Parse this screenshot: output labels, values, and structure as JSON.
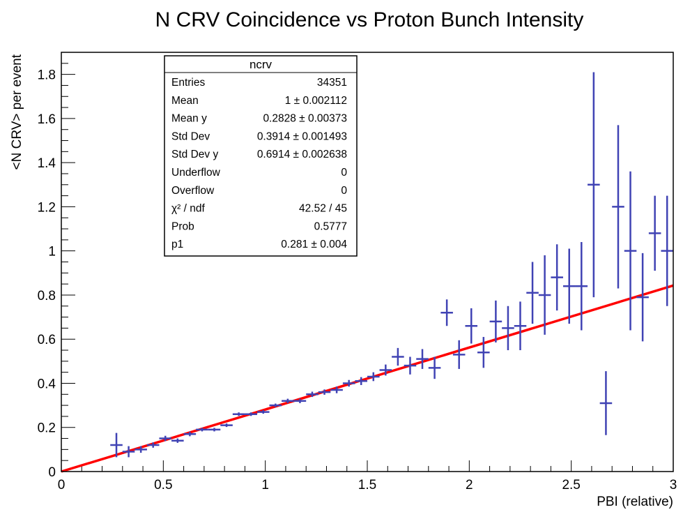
{
  "chart_data": {
    "type": "scatter",
    "title": "N CRV Coincidence vs Proton Bunch Intensity",
    "xlabel": "PBI (relative)",
    "ylabel": "<N CRV> per event",
    "xlim": [
      0,
      3
    ],
    "ylim": [
      0,
      1.9
    ],
    "x_ticks": [
      {
        "value": 0,
        "label": "0"
      },
      {
        "value": 0.5,
        "label": "0.5"
      },
      {
        "value": 1,
        "label": "1"
      },
      {
        "value": 1.5,
        "label": "1.5"
      },
      {
        "value": 2,
        "label": "2"
      },
      {
        "value": 2.5,
        "label": "2.5"
      },
      {
        "value": 3,
        "label": "3"
      }
    ],
    "y_ticks": [
      {
        "value": 0,
        "label": "0"
      },
      {
        "value": 0.2,
        "label": "0.2"
      },
      {
        "value": 0.4,
        "label": "0.4"
      },
      {
        "value": 0.6,
        "label": "0.6"
      },
      {
        "value": 0.8,
        "label": "0.8"
      },
      {
        "value": 1,
        "label": "1"
      },
      {
        "value": 1.2,
        "label": "1.2"
      },
      {
        "value": 1.4,
        "label": "1.4"
      },
      {
        "value": 1.6,
        "label": "1.6"
      },
      {
        "value": 1.8,
        "label": "1.8"
      }
    ],
    "bin_half_width": 0.03,
    "points": [
      {
        "x": 0.27,
        "y": 0.12,
        "err": 0.055
      },
      {
        "x": 0.33,
        "y": 0.09,
        "err": 0.025
      },
      {
        "x": 0.39,
        "y": 0.1,
        "err": 0.015
      },
      {
        "x": 0.45,
        "y": 0.12,
        "err": 0.012
      },
      {
        "x": 0.51,
        "y": 0.15,
        "err": 0.012
      },
      {
        "x": 0.57,
        "y": 0.14,
        "err": 0.01
      },
      {
        "x": 0.63,
        "y": 0.17,
        "err": 0.01
      },
      {
        "x": 0.69,
        "y": 0.19,
        "err": 0.008
      },
      {
        "x": 0.75,
        "y": 0.19,
        "err": 0.008
      },
      {
        "x": 0.81,
        "y": 0.21,
        "err": 0.008
      },
      {
        "x": 0.87,
        "y": 0.26,
        "err": 0.008
      },
      {
        "x": 0.93,
        "y": 0.26,
        "err": 0.008
      },
      {
        "x": 0.99,
        "y": 0.27,
        "err": 0.008
      },
      {
        "x": 1.05,
        "y": 0.3,
        "err": 0.008
      },
      {
        "x": 1.11,
        "y": 0.32,
        "err": 0.01
      },
      {
        "x": 1.17,
        "y": 0.32,
        "err": 0.01
      },
      {
        "x": 1.23,
        "y": 0.35,
        "err": 0.012
      },
      {
        "x": 1.29,
        "y": 0.36,
        "err": 0.012
      },
      {
        "x": 1.35,
        "y": 0.37,
        "err": 0.015
      },
      {
        "x": 1.41,
        "y": 0.4,
        "err": 0.015
      },
      {
        "x": 1.47,
        "y": 0.41,
        "err": 0.018
      },
      {
        "x": 1.53,
        "y": 0.43,
        "err": 0.02
      },
      {
        "x": 1.59,
        "y": 0.46,
        "err": 0.025
      },
      {
        "x": 1.65,
        "y": 0.52,
        "err": 0.04
      },
      {
        "x": 1.71,
        "y": 0.48,
        "err": 0.04
      },
      {
        "x": 1.77,
        "y": 0.51,
        "err": 0.045
      },
      {
        "x": 1.83,
        "y": 0.47,
        "err": 0.05
      },
      {
        "x": 1.89,
        "y": 0.72,
        "err": 0.06
      },
      {
        "x": 1.95,
        "y": 0.53,
        "err": 0.065
      },
      {
        "x": 2.01,
        "y": 0.66,
        "err": 0.08
      },
      {
        "x": 2.07,
        "y": 0.54,
        "err": 0.07
      },
      {
        "x": 2.13,
        "y": 0.68,
        "err": 0.095
      },
      {
        "x": 2.19,
        "y": 0.65,
        "err": 0.1
      },
      {
        "x": 2.25,
        "y": 0.66,
        "err": 0.11
      },
      {
        "x": 2.31,
        "y": 0.81,
        "err": 0.14
      },
      {
        "x": 2.37,
        "y": 0.8,
        "err": 0.18
      },
      {
        "x": 2.43,
        "y": 0.88,
        "err": 0.15
      },
      {
        "x": 2.49,
        "y": 0.84,
        "err": 0.17
      },
      {
        "x": 2.55,
        "y": 0.84,
        "err": 0.2
      },
      {
        "x": 2.61,
        "y": 1.3,
        "err": 0.51
      },
      {
        "x": 2.67,
        "y": 0.31,
        "err": 0.145
      },
      {
        "x": 2.73,
        "y": 1.2,
        "err": 0.37
      },
      {
        "x": 2.79,
        "y": 1.0,
        "err": 0.36
      },
      {
        "x": 2.85,
        "y": 0.79,
        "err": 0.2
      },
      {
        "x": 2.91,
        "y": 1.08,
        "err": 0.17
      },
      {
        "x": 2.97,
        "y": 1.0,
        "err": 0.25
      }
    ],
    "fit": {
      "slope": 0.281,
      "intercept": 0,
      "color": "#ff0000"
    },
    "marker_color": "#4043b4",
    "stats_box": {
      "title": "ncrv",
      "rows": [
        {
          "label": "Entries",
          "value": "34351"
        },
        {
          "label": "Mean",
          "value": "1 ± 0.002112"
        },
        {
          "label": "Mean y",
          "value": "0.2828 ± 0.00373"
        },
        {
          "label": "Std Dev",
          "value": "0.3914 ± 0.001493"
        },
        {
          "label": "Std Dev y",
          "value": "0.6914 ± 0.002638"
        },
        {
          "label": "Underflow",
          "value": "0"
        },
        {
          "label": "Overflow",
          "value": "0"
        },
        {
          "label": "χ² / ndf",
          "value": "42.52 / 45"
        },
        {
          "label": "Prob",
          "value": "0.5777"
        },
        {
          "label": "p1",
          "value": "0.281 ± 0.004"
        }
      ]
    }
  }
}
